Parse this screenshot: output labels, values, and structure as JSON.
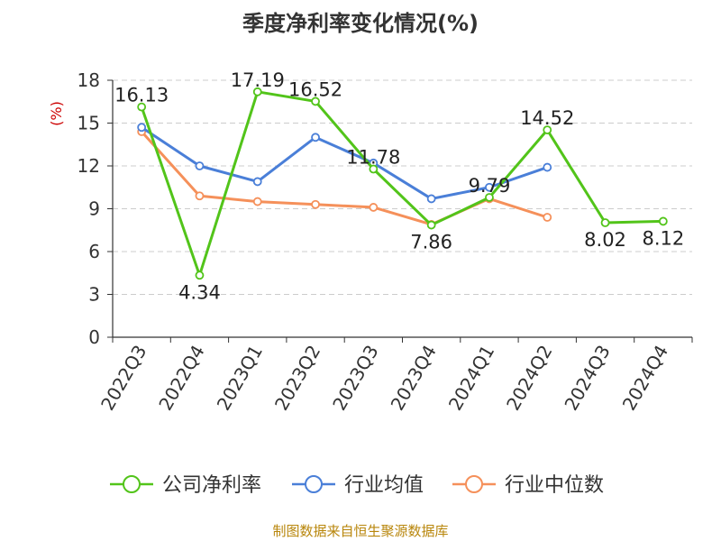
{
  "title": "季度净利率变化情况(%)",
  "source_note": "制图数据来自恒生聚源数据库",
  "chart_data": {
    "type": "line",
    "title": "季度净利率变化情况(%)",
    "ylabel": "(%)",
    "xlabel": "",
    "ylim": [
      0,
      18
    ],
    "yticks": [
      0,
      3,
      6,
      9,
      12,
      15,
      18
    ],
    "grid": true,
    "legend_position": "bottom",
    "categories": [
      "2022Q3",
      "2022Q4",
      "2023Q1",
      "2023Q2",
      "2023Q3",
      "2023Q4",
      "2024Q1",
      "2024Q2",
      "2024Q3",
      "2024Q4"
    ],
    "series": [
      {
        "name": "公司净利率",
        "color": "#52c41a",
        "values": [
          16.13,
          4.34,
          17.19,
          16.52,
          11.78,
          7.86,
          9.79,
          14.52,
          8.02,
          8.12
        ],
        "labels": [
          "16.13",
          "4.34",
          "17.19",
          "16.52",
          "11.78",
          "7.86",
          "9.79",
          "14.52",
          "8.02",
          "8.12"
        ]
      },
      {
        "name": "行业均值",
        "color": "#4a7fd8",
        "values": [
          14.7,
          12.0,
          10.9,
          14.0,
          12.2,
          9.7,
          10.5,
          11.9,
          null,
          null
        ]
      },
      {
        "name": "行业中位数",
        "color": "#f5905a",
        "values": [
          14.4,
          9.9,
          9.5,
          9.3,
          9.1,
          7.9,
          9.7,
          8.4,
          null,
          null
        ]
      }
    ]
  }
}
